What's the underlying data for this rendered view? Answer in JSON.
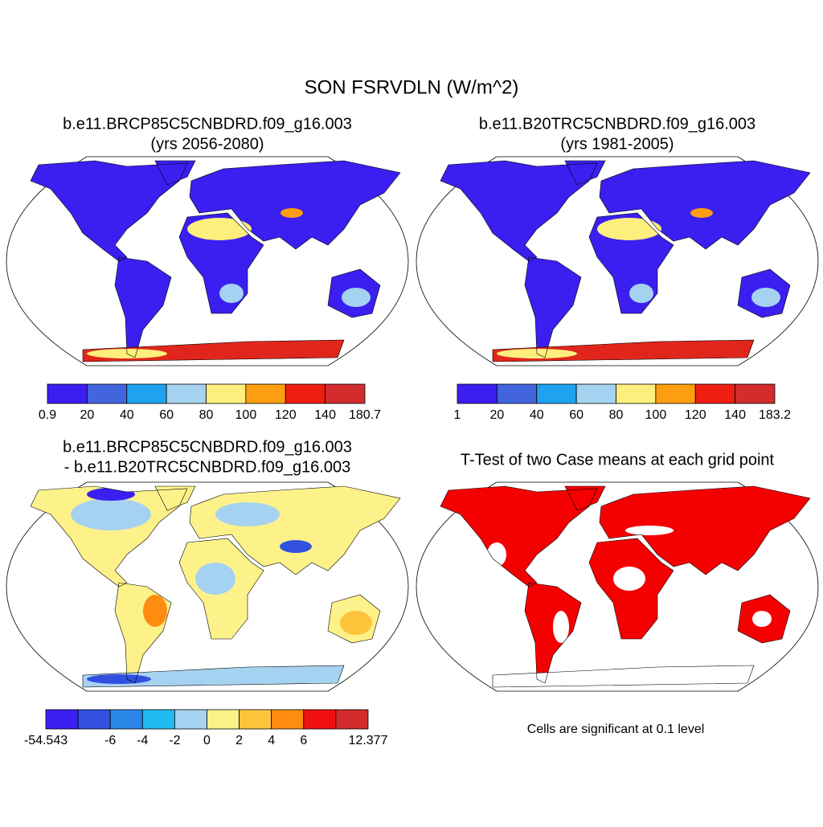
{
  "title": "SON FSRVDLN (W/m^2)",
  "panels": [
    {
      "title": "b.e11.BRCP85C5CNBDRD.f09_g16.003",
      "subtitle": "(yrs 2056-2080)",
      "colorbar": {
        "colors": [
          "#3b1ff0",
          "#4264dc",
          "#1fa3f0",
          "#a5d2f0",
          "#fdee7d",
          "#fd9e10",
          "#f01e10",
          "#d22c2c"
        ],
        "labels": [
          "0.9",
          "20",
          "40",
          "60",
          "80",
          "100",
          "120",
          "140",
          "180.7"
        ]
      }
    },
    {
      "title": "b.e11.B20TRC5CNBDRD.f09_g16.003",
      "subtitle": "(yrs 1981-2005)",
      "colorbar": {
        "colors": [
          "#3b1ff0",
          "#4264dc",
          "#1fa3f0",
          "#a5d2f0",
          "#fdee7d",
          "#fd9e10",
          "#f01e10",
          "#d22c2c"
        ],
        "labels": [
          "1",
          "20",
          "40",
          "60",
          "80",
          "100",
          "120",
          "140",
          "183.2"
        ]
      }
    },
    {
      "title": "b.e11.BRCP85C5CNBDRD.f09_g16.003",
      "subtitle": "- b.e11.B20TRC5CNBDRD.f09_g16.003",
      "colorbar": {
        "colors": [
          "#3b1ff0",
          "#3250e0",
          "#2a87e8",
          "#1fbaf0",
          "#a5d2f0",
          "#fdf28a",
          "#fdc43c",
          "#fd8c10",
          "#f01010",
          "#d22c2c"
        ],
        "labels": [
          "-54.543",
          null,
          "-6",
          "-4",
          "-2",
          "0",
          "2",
          "4",
          "6",
          null,
          "12.377"
        ]
      }
    },
    {
      "title": "T-Test of two Case means at each grid point",
      "note": "Cells are significant at 0.1 level"
    }
  ]
}
